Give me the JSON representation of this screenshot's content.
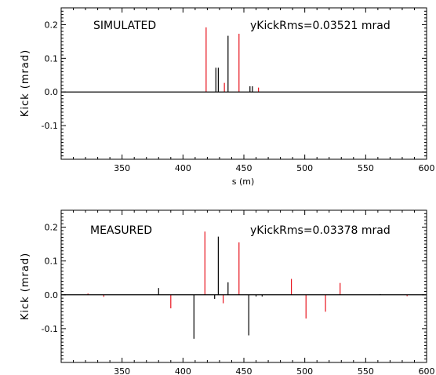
{
  "colors": {
    "black": "#000000",
    "red": "#e8141e",
    "axis": "#000000"
  },
  "chart_data": [
    {
      "type": "bar",
      "title": "SIMULATED",
      "annotation": "yKickRms=0.03521  mrad",
      "xlabel": "s  (m)",
      "ylabel": "Kick  (mrad)",
      "xlim": [
        300,
        600
      ],
      "ylim": [
        -0.2,
        0.25
      ],
      "xticks": [
        350,
        400,
        450,
        500,
        550,
        600
      ],
      "xtick_labels": [
        "350",
        "400",
        "450",
        "500",
        "550",
        "600"
      ],
      "yticks": [
        0.2,
        0.1,
        0.0,
        -0.1
      ],
      "ytick_labels": [
        "0.2",
        "0.1",
        "0.0",
        "-0.1"
      ],
      "grid": false,
      "kicks": [
        {
          "s": 419,
          "value": 0.192,
          "color": "red"
        },
        {
          "s": 427,
          "value": 0.072,
          "color": "black"
        },
        {
          "s": 429,
          "value": 0.072,
          "color": "black"
        },
        {
          "s": 434,
          "value": 0.027,
          "color": "red"
        },
        {
          "s": 437,
          "value": 0.167,
          "color": "black"
        },
        {
          "s": 446,
          "value": 0.173,
          "color": "red"
        },
        {
          "s": 455,
          "value": 0.017,
          "color": "black"
        },
        {
          "s": 457,
          "value": 0.017,
          "color": "black"
        },
        {
          "s": 462,
          "value": 0.013,
          "color": "red"
        }
      ]
    },
    {
      "type": "bar",
      "title": "MEASURED",
      "annotation": "yKickRms=0.03378  mrad",
      "xlabel": "",
      "ylabel": "Kick  (mrad)",
      "xlim": [
        300,
        600
      ],
      "ylim": [
        -0.2,
        0.25
      ],
      "xticks": [
        350,
        400,
        450,
        500,
        550,
        600
      ],
      "xtick_labels": [
        "350",
        "400",
        "450",
        "500",
        "550",
        "600"
      ],
      "yticks": [
        0.2,
        0.1,
        0.0,
        -0.1
      ],
      "ytick_labels": [
        "0.2",
        "0.1",
        "0.0",
        "-0.1"
      ],
      "grid": false,
      "kicks": [
        {
          "s": 322,
          "value": 0.004,
          "color": "red"
        },
        {
          "s": 335,
          "value": -0.006,
          "color": "red"
        },
        {
          "s": 380,
          "value": 0.02,
          "color": "black"
        },
        {
          "s": 390,
          "value": -0.04,
          "color": "red"
        },
        {
          "s": 409,
          "value": -0.13,
          "color": "black"
        },
        {
          "s": 418,
          "value": 0.187,
          "color": "red"
        },
        {
          "s": 426,
          "value": -0.012,
          "color": "black"
        },
        {
          "s": 429,
          "value": 0.172,
          "color": "black"
        },
        {
          "s": 433,
          "value": -0.025,
          "color": "red"
        },
        {
          "s": 437,
          "value": 0.037,
          "color": "black"
        },
        {
          "s": 446,
          "value": 0.155,
          "color": "red"
        },
        {
          "s": 454,
          "value": -0.12,
          "color": "black"
        },
        {
          "s": 460,
          "value": -0.005,
          "color": "black"
        },
        {
          "s": 465,
          "value": -0.005,
          "color": "black"
        },
        {
          "s": 489,
          "value": 0.047,
          "color": "red"
        },
        {
          "s": 501,
          "value": -0.07,
          "color": "red"
        },
        {
          "s": 517,
          "value": -0.05,
          "color": "red"
        },
        {
          "s": 529,
          "value": 0.035,
          "color": "red"
        },
        {
          "s": 562,
          "value": 0.002,
          "color": "black"
        },
        {
          "s": 584,
          "value": -0.004,
          "color": "red"
        }
      ]
    }
  ]
}
